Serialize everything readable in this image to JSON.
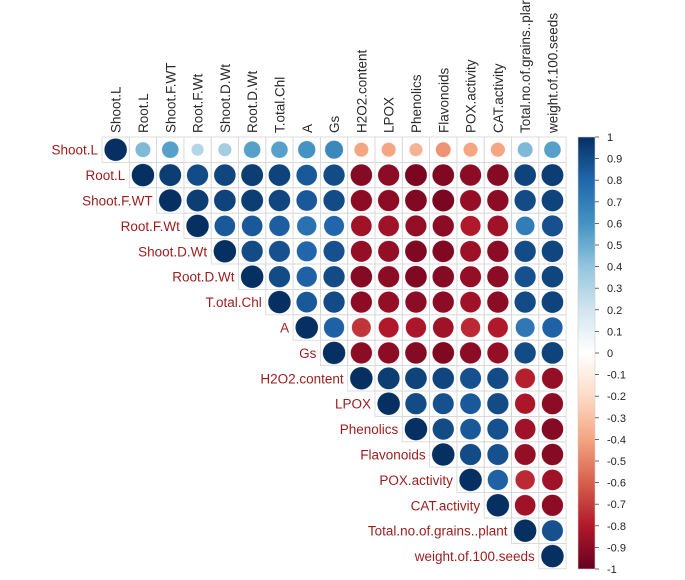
{
  "chart_data": {
    "type": "heatmap",
    "subtype": "correlation-upper-triangle-circles",
    "variables": [
      "Shoot.L",
      "Root.L",
      "Shoot.F.WT",
      "Root.F.Wt",
      "Shoot.D.Wt",
      "Root.D.Wt",
      "T.otal.Chl",
      "A",
      "Gs",
      "H2O2.content",
      "LPOX",
      "Phenolics",
      "Flavonoids",
      "POX.activity",
      "CAT.activity",
      "Total.no.of.grains..plant",
      "weight.of.100.seeds"
    ],
    "column_labels": [
      "Shoot.L",
      "Root.L",
      "Shoot.F.WT",
      "Root.F.Wt",
      "Shoot.D.Wt",
      "Root.D.Wt",
      "T.otal.Chl",
      "A",
      "Gs",
      "H2O2.content",
      "LPOX",
      "Phenolics",
      "Flavonoids",
      "POX.activity",
      "CAT.activity",
      "Total.no.of.grains..plar",
      "weight.of.100.seeds"
    ],
    "matrix": [
      [
        1,
        0.45,
        0.55,
        0.3,
        0.35,
        0.55,
        0.55,
        0.6,
        0.65,
        -0.4,
        -0.4,
        -0.35,
        -0.45,
        -0.4,
        -0.4,
        0.45,
        0.55
      ],
      [
        null,
        1,
        0.95,
        0.9,
        0.92,
        0.95,
        0.93,
        0.85,
        0.9,
        -0.92,
        -0.9,
        -0.95,
        -0.93,
        -0.9,
        -0.92,
        0.93,
        0.95
      ],
      [
        null,
        null,
        1,
        0.95,
        0.93,
        0.95,
        0.92,
        0.85,
        0.9,
        -0.9,
        -0.9,
        -0.93,
        -0.95,
        -0.88,
        -0.9,
        0.9,
        0.93
      ],
      [
        null,
        null,
        null,
        1,
        0.85,
        0.85,
        0.83,
        0.75,
        0.8,
        -0.85,
        -0.85,
        -0.88,
        -0.9,
        -0.8,
        -0.85,
        0.7,
        0.88
      ],
      [
        null,
        null,
        null,
        null,
        1,
        0.9,
        0.88,
        0.8,
        0.88,
        -0.88,
        -0.88,
        -0.93,
        -0.93,
        -0.86,
        -0.9,
        0.9,
        0.92
      ],
      [
        null,
        null,
        null,
        null,
        null,
        1,
        0.9,
        0.82,
        0.9,
        -0.92,
        -0.9,
        -0.93,
        -0.92,
        -0.88,
        -0.9,
        0.88,
        0.92
      ],
      [
        null,
        null,
        null,
        null,
        null,
        null,
        1,
        0.85,
        0.9,
        -0.9,
        -0.88,
        -0.9,
        -0.9,
        -0.85,
        -0.9,
        0.9,
        0.93
      ],
      [
        null,
        null,
        null,
        null,
        null,
        null,
        null,
        1,
        0.82,
        -0.72,
        -0.8,
        -0.82,
        -0.85,
        -0.75,
        -0.8,
        0.72,
        0.82
      ],
      [
        null,
        null,
        null,
        null,
        null,
        null,
        null,
        null,
        1,
        -0.9,
        -0.9,
        -0.92,
        -0.93,
        -0.9,
        -0.88,
        0.9,
        0.93
      ],
      [
        null,
        null,
        null,
        null,
        null,
        null,
        null,
        null,
        null,
        1,
        0.95,
        0.93,
        0.92,
        0.88,
        0.9,
        -0.78,
        -0.88
      ],
      [
        null,
        null,
        null,
        null,
        null,
        null,
        null,
        null,
        null,
        null,
        1,
        0.9,
        0.88,
        0.85,
        0.9,
        -0.82,
        -0.9
      ],
      [
        null,
        null,
        null,
        null,
        null,
        null,
        null,
        null,
        null,
        null,
        null,
        1,
        0.9,
        0.85,
        0.88,
        -0.85,
        -0.92
      ],
      [
        null,
        null,
        null,
        null,
        null,
        null,
        null,
        null,
        null,
        null,
        null,
        null,
        1,
        0.9,
        0.88,
        -0.88,
        -0.92
      ],
      [
        null,
        null,
        null,
        null,
        null,
        null,
        null,
        null,
        null,
        null,
        null,
        null,
        null,
        1,
        0.82,
        -0.75,
        -0.85
      ],
      [
        null,
        null,
        null,
        null,
        null,
        null,
        null,
        null,
        null,
        null,
        null,
        null,
        null,
        null,
        1,
        -0.85,
        -0.9
      ],
      [
        null,
        null,
        null,
        null,
        null,
        null,
        null,
        null,
        null,
        null,
        null,
        null,
        null,
        null,
        null,
        1,
        0.88
      ],
      [
        null,
        null,
        null,
        null,
        null,
        null,
        null,
        null,
        null,
        null,
        null,
        null,
        null,
        null,
        null,
        null,
        1
      ]
    ],
    "color_scale": {
      "range": [
        -1,
        1
      ],
      "ticks": [
        "1",
        "0.9",
        "0.8",
        "0.7",
        "0.6",
        "0.5",
        "0.4",
        "0.3",
        "0.2",
        "0.1",
        "0",
        "-0.1",
        "-0.2",
        "-0.3",
        "-0.4",
        "-0.5",
        "-0.6",
        "-0.7",
        "-0.8",
        "-0.9",
        "-1"
      ],
      "negative_color": "#67001f",
      "mid_color": "#ffffff",
      "positive_color": "#053061",
      "label_color": "#9b1c1c"
    },
    "title": "",
    "xlabel": "",
    "ylabel": ""
  }
}
